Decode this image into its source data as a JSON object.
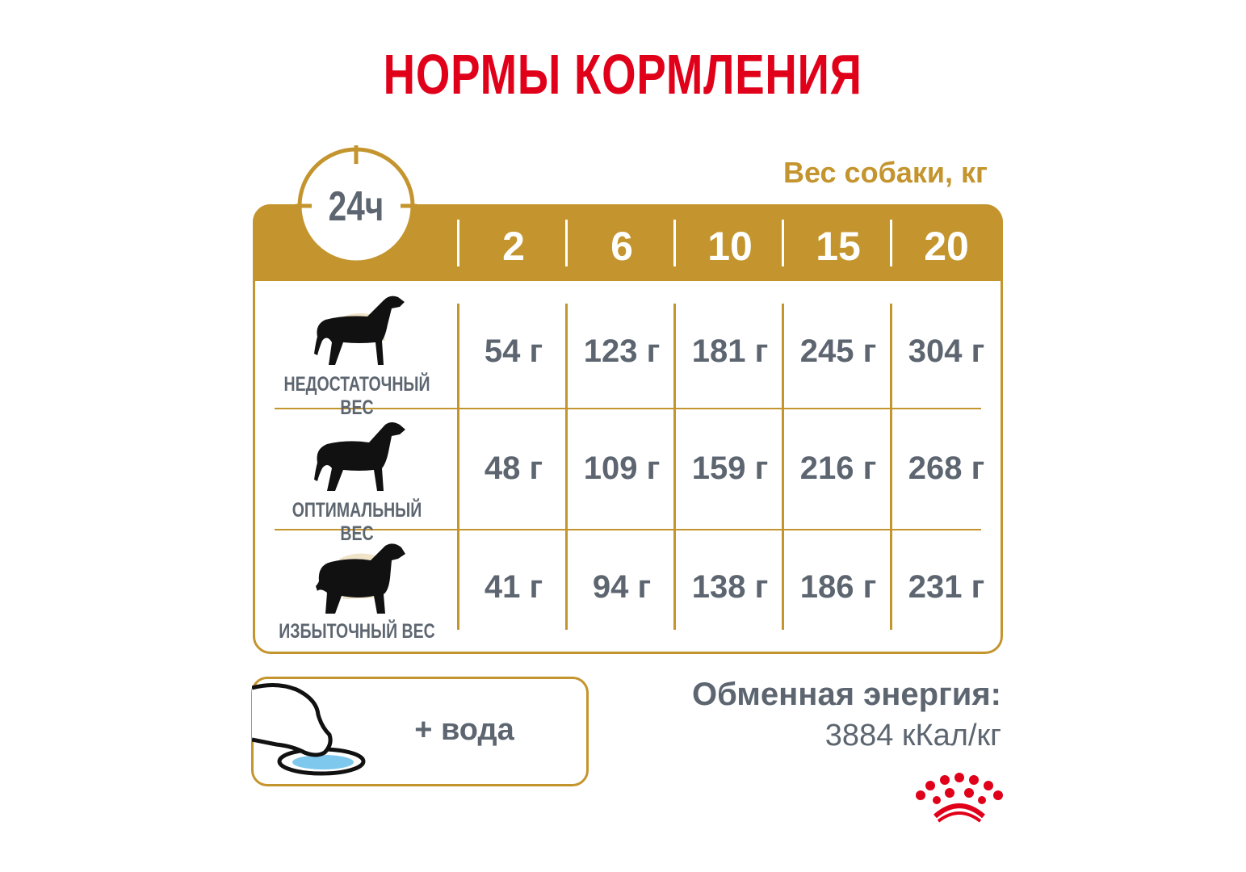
{
  "title": "НОРМЫ КОРМЛЕНИЯ",
  "period_label": "24ч",
  "weight_header": "Вес собаки, кг",
  "weights": [
    "2",
    "6",
    "10",
    "15",
    "20"
  ],
  "rows": [
    {
      "label": "НЕДОСТАТОЧНЫЙ ВЕС",
      "values": [
        "54 г",
        "123 г",
        "181 г",
        "245 г",
        "304 г"
      ]
    },
    {
      "label": "ОПТИМАЛЬНЫЙ ВЕС",
      "values": [
        "48 г",
        "109 г",
        "159 г",
        "216 г",
        "268 г"
      ]
    },
    {
      "label": "ИЗБЫТОЧНЫЙ ВЕС",
      "values": [
        "41 г",
        "94 г",
        "138 г",
        "186 г",
        "231 г"
      ]
    }
  ],
  "water": "+ вода",
  "energy": {
    "title": "Обменная энергия:",
    "value": "3884 кКал/кг"
  },
  "colors": {
    "accent": "#C4952E",
    "brand_red": "#E1001A",
    "text": "#5d6670",
    "water": "#7ec8ee"
  }
}
